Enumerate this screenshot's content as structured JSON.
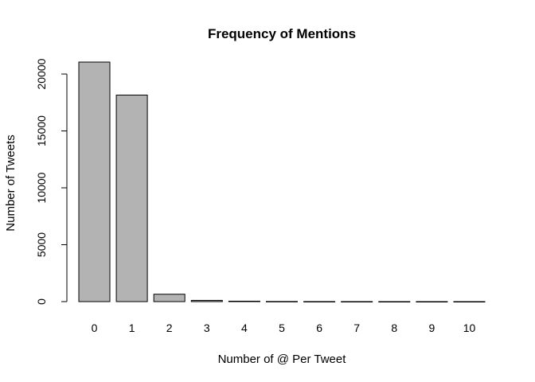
{
  "chart_data": {
    "type": "bar",
    "title": "Frequency of Mentions",
    "xlabel": "Number of @ Per Tweet",
    "ylabel": "Number of Tweets",
    "categories": [
      "0",
      "1",
      "2",
      "3",
      "4",
      "5",
      "6",
      "7",
      "8",
      "9",
      "10"
    ],
    "values": [
      21050,
      18150,
      650,
      110,
      40,
      15,
      8,
      5,
      3,
      2,
      2
    ],
    "ylim": [
      0,
      21050
    ],
    "yticks": [
      0,
      5000,
      10000,
      15000,
      20000
    ],
    "bar_color": "#b3b3b3",
    "grid": false,
    "legend": "none"
  }
}
